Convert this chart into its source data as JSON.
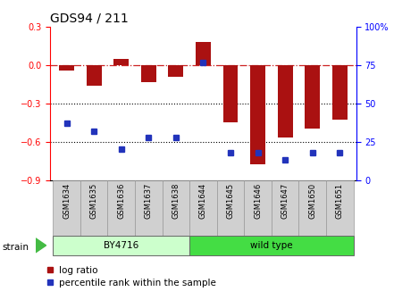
{
  "title": "GDS94 / 211",
  "samples": [
    "GSM1634",
    "GSM1635",
    "GSM1636",
    "GSM1637",
    "GSM1638",
    "GSM1644",
    "GSM1645",
    "GSM1646",
    "GSM1647",
    "GSM1650",
    "GSM1651"
  ],
  "log_ratio": [
    -0.04,
    -0.16,
    0.05,
    -0.13,
    -0.09,
    0.18,
    -0.45,
    -0.78,
    -0.57,
    -0.5,
    -0.43
  ],
  "percentile_rank": [
    37,
    32,
    20,
    28,
    28,
    77,
    18,
    18,
    13,
    18,
    18
  ],
  "bar_color": "#aa1111",
  "dot_color": "#2233bb",
  "dashed_color": "#cc2222",
  "ylim_left": [
    -0.9,
    0.3
  ],
  "ylim_right": [
    0,
    100
  ],
  "yticks_left": [
    -0.9,
    -0.6,
    -0.3,
    0.0,
    0.3
  ],
  "yticks_right": [
    0,
    25,
    50,
    75,
    100
  ],
  "hlines": [
    -0.3,
    -0.6
  ],
  "strain_groups": [
    {
      "label": "BY4716",
      "start": 0,
      "end": 5,
      "color": "#ccffcc"
    },
    {
      "label": "wild type",
      "start": 5,
      "end": 11,
      "color": "#44dd44"
    }
  ],
  "strain_label": "strain",
  "legend_entries": [
    "log ratio",
    "percentile rank within the sample"
  ],
  "background_color": "#ffffff",
  "tick_label_fontsize": 7,
  "title_fontsize": 10
}
